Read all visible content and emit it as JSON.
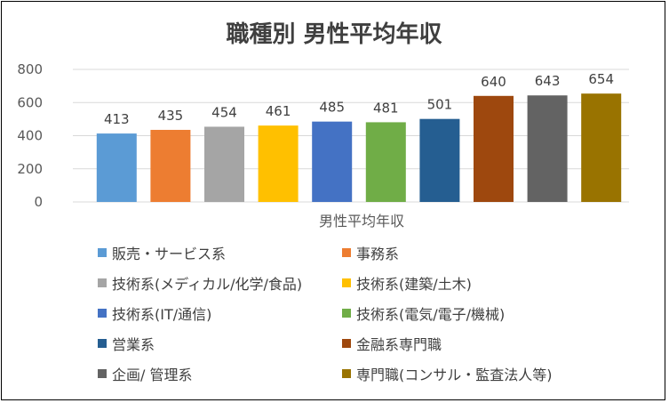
{
  "chart_data": {
    "type": "bar",
    "title": "職種別 男性平均年収",
    "xlabel": "男性平均年収",
    "ylabel": "",
    "ylim": [
      0,
      800
    ],
    "yticks": [
      0,
      200,
      400,
      600,
      800
    ],
    "grid": true,
    "legend_position": "bottom",
    "categories": [
      "販売・サービス系",
      "事務系",
      "技術系(メディカル/化学/食品)",
      "技術系(建築/土木)",
      "技術系(IT/通信)",
      "技術系(電気/電子/機械)",
      "営業系",
      "金融系専門職",
      "企画/ 管理系",
      "専門職(コンサル・監査法人等)"
    ],
    "values": [
      413,
      435,
      454,
      461,
      485,
      481,
      501,
      640,
      643,
      654
    ],
    "colors": [
      "#5b9bd5",
      "#ed7d31",
      "#a5a5a5",
      "#ffc000",
      "#4472c4",
      "#70ad47",
      "#255e91",
      "#9e480e",
      "#636363",
      "#997300"
    ]
  }
}
